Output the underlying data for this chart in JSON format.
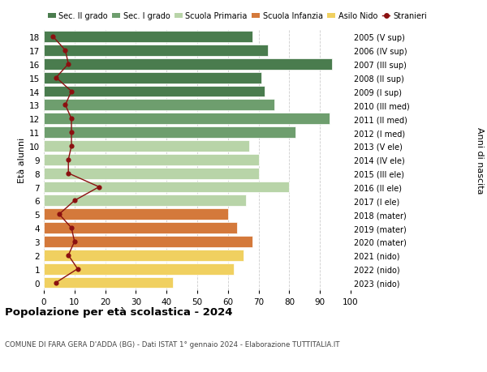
{
  "ages": [
    18,
    17,
    16,
    15,
    14,
    13,
    12,
    11,
    10,
    9,
    8,
    7,
    6,
    5,
    4,
    3,
    2,
    1,
    0
  ],
  "right_labels": [
    "2005 (V sup)",
    "2006 (IV sup)",
    "2007 (III sup)",
    "2008 (II sup)",
    "2009 (I sup)",
    "2010 (III med)",
    "2011 (II med)",
    "2012 (I med)",
    "2013 (V ele)",
    "2014 (IV ele)",
    "2015 (III ele)",
    "2016 (II ele)",
    "2017 (I ele)",
    "2018 (mater)",
    "2019 (mater)",
    "2020 (mater)",
    "2021 (nido)",
    "2022 (nido)",
    "2023 (nido)"
  ],
  "bar_values": [
    68,
    73,
    94,
    71,
    72,
    75,
    93,
    82,
    67,
    70,
    70,
    80,
    66,
    60,
    63,
    68,
    65,
    62,
    42
  ],
  "bar_colors": [
    "#4a7c4e",
    "#4a7c4e",
    "#4a7c4e",
    "#4a7c4e",
    "#4a7c4e",
    "#6e9e6e",
    "#6e9e6e",
    "#6e9e6e",
    "#b8d4a8",
    "#b8d4a8",
    "#b8d4a8",
    "#b8d4a8",
    "#b8d4a8",
    "#d4793b",
    "#d4793b",
    "#d4793b",
    "#f0d060",
    "#f0d060",
    "#f0d060"
  ],
  "stranieri_values": [
    3,
    7,
    8,
    4,
    9,
    7,
    9,
    9,
    9,
    8,
    8,
    18,
    10,
    5,
    9,
    10,
    8,
    11,
    4
  ],
  "xlim": [
    0,
    100
  ],
  "xlabel_ticks": [
    0,
    10,
    20,
    30,
    40,
    50,
    60,
    70,
    80,
    90,
    100
  ],
  "title_bold": "Popolazione per età scolastica - 2024",
  "subtitle": "COMUNE DI FARA GERA D'ADDA (BG) - Dati ISTAT 1° gennaio 2024 - Elaborazione TUTTITALIA.IT",
  "ylabel_left": "Età alunni",
  "ylabel_right": "Anni di nascita",
  "legend_items": [
    {
      "label": "Sec. II grado",
      "color": "#4a7c4e"
    },
    {
      "label": "Sec. I grado",
      "color": "#6e9e6e"
    },
    {
      "label": "Scuola Primaria",
      "color": "#b8d4a8"
    },
    {
      "label": "Scuola Infanzia",
      "color": "#d4793b"
    },
    {
      "label": "Asilo Nido",
      "color": "#f0d060"
    },
    {
      "label": "Stranieri",
      "color": "#8b1010"
    }
  ],
  "background_color": "#ffffff",
  "grid_color": "#cccccc",
  "stranieri_line_color": "#8b1010",
  "stranieri_dot_color": "#8b1010"
}
